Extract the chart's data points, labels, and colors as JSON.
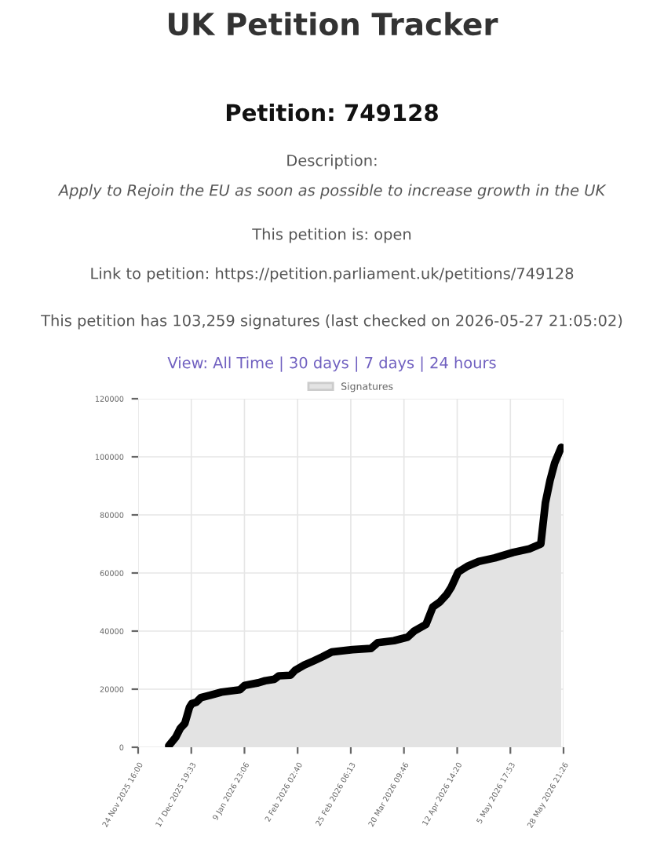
{
  "chart_data": {
    "type": "area",
    "title": "UK Petition Tracker",
    "subtitle": "Petition: 749128",
    "annotations": [
      "Description:",
      "Apply to Rejoin the EU as soon as possible to increase growth in the UK",
      "This petition is: open",
      "Link to petition: https://petition.parliament.uk/petitions/749128",
      "This petition has 103,259 signatures (last checked on 2026-05-27 21:05:02)",
      "View: All Time | 30 days | 7 days | 24 hours"
    ],
    "x": [
      "2025-12-08",
      "2025-12-11",
      "2025-12-13",
      "2025-12-15",
      "2025-12-17",
      "2025-12-18",
      "2025-12-20",
      "2025-12-22",
      "2025-12-26",
      "2025-12-31",
      "2026-01-08",
      "2026-01-10",
      "2026-01-16",
      "2026-01-19",
      "2026-01-23",
      "2026-01-25",
      "2026-01-30",
      "2026-02-01",
      "2026-02-05",
      "2026-02-09",
      "2026-02-13",
      "2026-02-17",
      "2026-02-26",
      "2026-03-06",
      "2026-03-09",
      "2026-03-16",
      "2026-03-22",
      "2026-03-25",
      "2026-03-30",
      "2026-04-02",
      "2026-04-05",
      "2026-04-08",
      "2026-04-10",
      "2026-04-13",
      "2026-04-17",
      "2026-04-22",
      "2026-04-29",
      "2026-05-07",
      "2026-05-14",
      "2026-05-19",
      "2026-05-21",
      "2026-05-23",
      "2026-05-25",
      "2026-05-27T21:05"
    ],
    "series": [
      {
        "name": "Signatures",
        "color": "#e3e3e3",
        "values": [
          500,
          3400,
          6500,
          8200,
          13700,
          15000,
          15500,
          17100,
          17900,
          19000,
          19800,
          21300,
          22200,
          22900,
          23400,
          24600,
          24800,
          26500,
          28300,
          29700,
          31200,
          32800,
          33600,
          34000,
          36000,
          36700,
          37900,
          40100,
          42300,
          48300,
          50000,
          52600,
          55100,
          60300,
          62300,
          64000,
          65200,
          67100,
          68300,
          70000,
          84200,
          91800,
          97800,
          103259
        ]
      }
    ],
    "xlim": [
      "2025-11-24T16:00",
      "2026-05-28T21:26"
    ],
    "xticks": [
      {
        "value": "2025-11-24T16:00",
        "label": "24 Nov 2025 16:00"
      },
      {
        "value": "2025-12-17T19:33",
        "label": "17 Dec 2025 19:33"
      },
      {
        "value": "2026-01-09T23:06",
        "label": "9 Jan 2026 23:06"
      },
      {
        "value": "2026-02-02T02:40",
        "label": "2 Feb 2026 02:40"
      },
      {
        "value": "2026-02-25T06:13",
        "label": "25 Feb 2026 06:13"
      },
      {
        "value": "2026-03-20T09:46",
        "label": "20 Mar 2026 09:46"
      },
      {
        "value": "2026-04-12T14:20",
        "label": "12 Apr 2026 14:20"
      },
      {
        "value": "2026-05-05T17:53",
        "label": "5 May 2026 17:53"
      },
      {
        "value": "2026-05-28T21:26",
        "label": "28 May 2026 21:26"
      }
    ],
    "ylim": [
      0,
      120000
    ],
    "yticks": [
      0,
      20000,
      40000,
      60000,
      80000,
      100000,
      120000
    ],
    "grid": true,
    "legend": "top"
  }
}
